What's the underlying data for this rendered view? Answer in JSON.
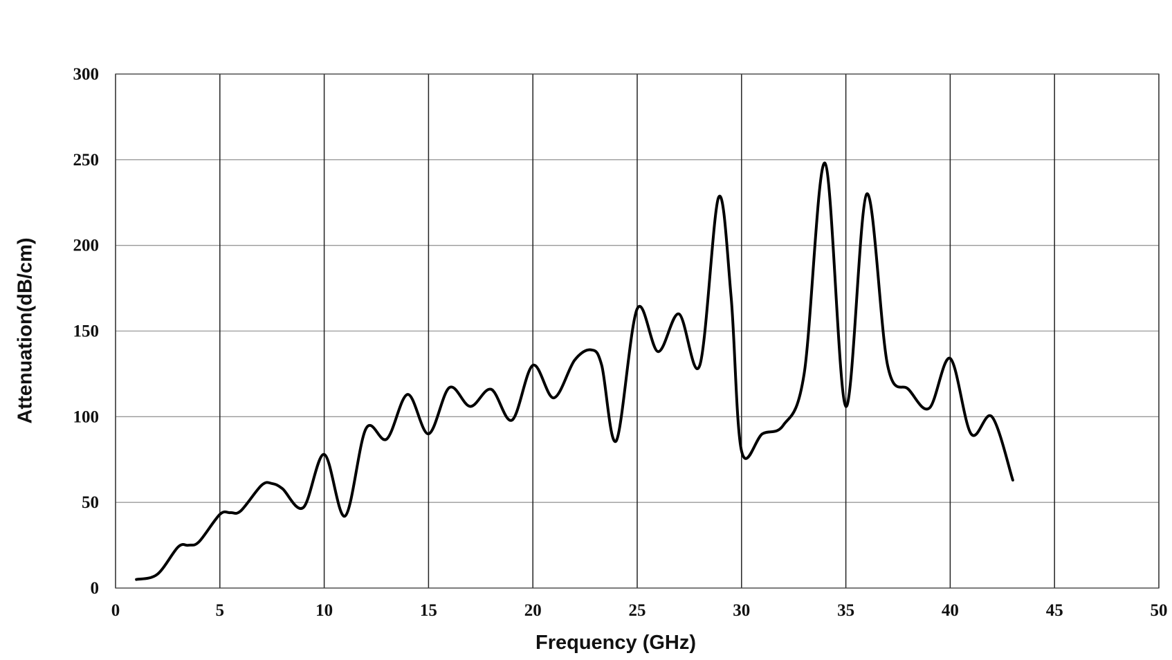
{
  "chart_data": {
    "type": "line",
    "x_label": "Frequency (GHz)",
    "y_label": "Attenuation(dB/cm)",
    "x": [
      1,
      2,
      3,
      3.5,
      4,
      5,
      5.5,
      6,
      7,
      7.5,
      8,
      9,
      10,
      11,
      12,
      13,
      14,
      15,
      16,
      17,
      18,
      19,
      20,
      21,
      22,
      22.8,
      23.3,
      24,
      25,
      26,
      27,
      28,
      28.9,
      29.5,
      30,
      31,
      32,
      33,
      34,
      35,
      36,
      37,
      38,
      39,
      40,
      41,
      42,
      43
    ],
    "series": [
      {
        "color": "#000000",
        "values": [
          5,
          8,
          24,
          25,
          27,
          43,
          44,
          45,
          60,
          61,
          58,
          47,
          78,
          42,
          93,
          87,
          113,
          90,
          117,
          106,
          116,
          98,
          130,
          111,
          133,
          139,
          130,
          86,
          163,
          138,
          160,
          130,
          228,
          170,
          80,
          90,
          95,
          125,
          248,
          106,
          230,
          130,
          116,
          105,
          134,
          90,
          100,
          63
        ]
      }
    ],
    "xlim": [
      0,
      50
    ],
    "xticks": [
      0,
      5,
      10,
      15,
      20,
      25,
      30,
      35,
      40,
      45,
      50
    ],
    "ylim": [
      0,
      300
    ],
    "yticks": [
      0,
      50,
      100,
      150,
      200,
      250,
      300
    ],
    "grid": true
  }
}
